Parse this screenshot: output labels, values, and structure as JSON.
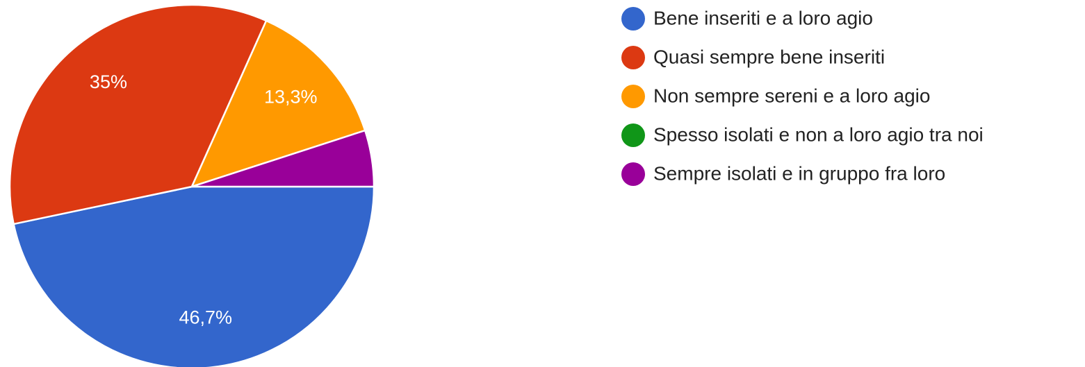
{
  "chart_data": {
    "type": "pie",
    "categories": [
      "Bene inseriti e a loro agio",
      "Quasi sempre bene inseriti",
      "Non sempre sereni e a loro agio",
      "Spesso isolati e non a loro agio tra noi",
      "Sempre isolati e in gruppo fra loro"
    ],
    "values": [
      46.7,
      35,
      13.3,
      0,
      5
    ],
    "value_labels": [
      "46,7%",
      "35%",
      "13,3%",
      null,
      null
    ],
    "colors": [
      "#3366cc",
      "#dc3912",
      "#ff9900",
      "#109618",
      "#990099"
    ],
    "legend": "right"
  }
}
